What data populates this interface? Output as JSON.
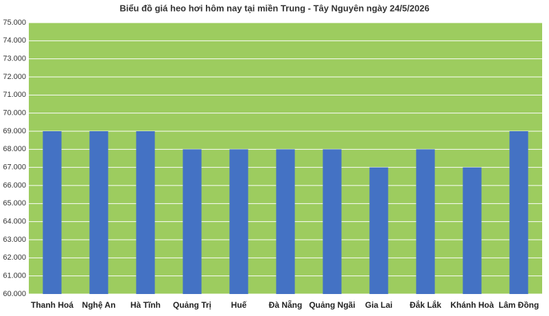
{
  "chart_data": {
    "type": "bar",
    "title": "Biểu đồ giá heo hơi hôm nay tại miền Trung - Tây Nguyên ngày 24/5/2026",
    "categories": [
      "Thanh Hoá",
      "Nghệ An",
      "Hà Tĩnh",
      "Quảng Trị",
      "Huế",
      "Đà Nẵng",
      "Quảng Ngãi",
      "Gia Lai",
      "Đắk Lắk",
      "Khánh Hoà",
      "Lâm Đồng"
    ],
    "values": [
      69000,
      69000,
      69000,
      68000,
      68000,
      68000,
      68000,
      67000,
      68000,
      67000,
      69000
    ],
    "color": "#4472c4",
    "plot_background": "#9dcc5f",
    "ylim": [
      60000,
      75000
    ],
    "yticks": [
      {
        "value": 60000,
        "label": "60.000"
      },
      {
        "value": 61000,
        "label": "61.000"
      },
      {
        "value": 62000,
        "label": "62.000"
      },
      {
        "value": 63000,
        "label": "63.000"
      },
      {
        "value": 64000,
        "label": "64.000"
      },
      {
        "value": 65000,
        "label": "65.000"
      },
      {
        "value": 66000,
        "label": "66.000"
      },
      {
        "value": 67000,
        "label": "67.000"
      },
      {
        "value": 68000,
        "label": "68.000"
      },
      {
        "value": 69000,
        "label": "69.000"
      },
      {
        "value": 70000,
        "label": "70.000"
      },
      {
        "value": 71000,
        "label": "71.000"
      },
      {
        "value": 72000,
        "label": "72.000"
      },
      {
        "value": 73000,
        "label": "73.000"
      },
      {
        "value": 74000,
        "label": "74.000"
      },
      {
        "value": 75000,
        "label": "75.000"
      }
    ],
    "grid": true
  }
}
